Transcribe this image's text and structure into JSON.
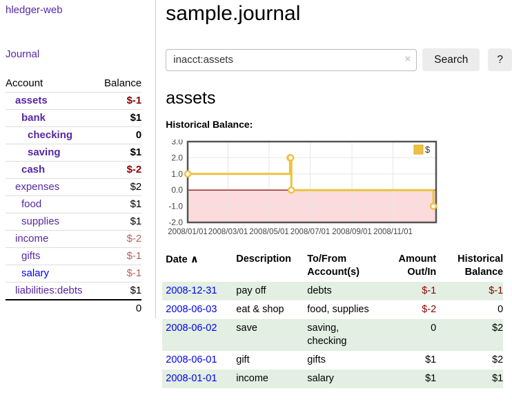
{
  "sidebar": {
    "brand": "hledger-web",
    "journal_link": "Journal",
    "accounts": {
      "header_account": "Account",
      "header_balance": "Balance",
      "rows": [
        {
          "name": "assets",
          "balance": "$-1"
        },
        {
          "name": "bank",
          "balance": "$1"
        },
        {
          "name": "checking",
          "balance": "0"
        },
        {
          "name": "saving",
          "balance": "$1"
        },
        {
          "name": "cash",
          "balance": "$-2"
        },
        {
          "name": "expenses",
          "balance": "$2"
        },
        {
          "name": "food",
          "balance": "$1"
        },
        {
          "name": "supplies",
          "balance": "$1"
        },
        {
          "name": "income",
          "balance": "$-2"
        },
        {
          "name": "gifts",
          "balance": "$-1"
        },
        {
          "name": "salary",
          "balance": "$-1"
        },
        {
          "name": "liabilities:debts",
          "balance": "$1"
        }
      ],
      "total": "0"
    }
  },
  "header": {
    "title": "sample.journal"
  },
  "search": {
    "value": "inacct:assets",
    "clear_icon": "×",
    "button_label": "Search",
    "help_label": "?"
  },
  "account_view": {
    "title": "assets",
    "chart_heading": "Historical Balance:"
  },
  "chart_data": {
    "type": "line",
    "step": true,
    "title": "Historical Balance:",
    "series": [
      {
        "name": "$",
        "x": [
          "2008-01-01",
          "2008-06-01",
          "2008-06-02",
          "2008-06-03",
          "2008-12-31"
        ],
        "values": [
          1.0,
          2.0,
          2.0,
          0.0,
          -1.0
        ]
      }
    ],
    "xlim": [
      "2008-01-01",
      "2009-01-04"
    ],
    "ylim": [
      -2.0,
      3.0
    ],
    "ytick_labels": [
      "3.0",
      "2.0",
      "1.0",
      "0.0",
      "-1.0",
      "-2.0"
    ],
    "xtick_labels": [
      "2008/01/01",
      "2008/03/01",
      "2008/05/01",
      "2008/07/01",
      "2008/09/01",
      "2008/11/01"
    ],
    "legend": {
      "position": "top-right",
      "label": "$"
    },
    "grid": true,
    "colors": {
      "line": "#edc240",
      "marker_fill": "#ffffff",
      "negative_fill": "#fbdbdb",
      "zero_line": "#991111",
      "grid": "#e6e6e6",
      "border": "#545454",
      "tick_text": "#444444"
    }
  },
  "register": {
    "headers": {
      "date": "Date",
      "sort_icon": "∧",
      "description": "Description",
      "accounts": "To/From Account(s)",
      "amount": "Amount Out/In",
      "balance": "Historical Balance"
    },
    "rows": [
      {
        "date": "2008-12-31",
        "description": "pay off",
        "accounts": "debts",
        "amount": "$-1",
        "balance": "$-1"
      },
      {
        "date": "2008-06-03",
        "description": "eat & shop",
        "accounts": "food, supplies",
        "amount": "$-2",
        "balance": "0"
      },
      {
        "date": "2008-06-02",
        "description": "save",
        "accounts": "saving, checking",
        "amount": "0",
        "balance": "$2"
      },
      {
        "date": "2008-06-01",
        "description": "gift",
        "accounts": "gifts",
        "amount": "$1",
        "balance": "$2"
      },
      {
        "date": "2008-01-01",
        "description": "income",
        "accounts": "salary",
        "amount": "$1",
        "balance": "$1"
      }
    ]
  },
  "colors": {
    "link_purple": "#5528a2",
    "link_blue": "#0000ee",
    "negative_dark": "#8b0000",
    "negative_light": "#b85f5f",
    "row_green": "#e2efe2"
  }
}
